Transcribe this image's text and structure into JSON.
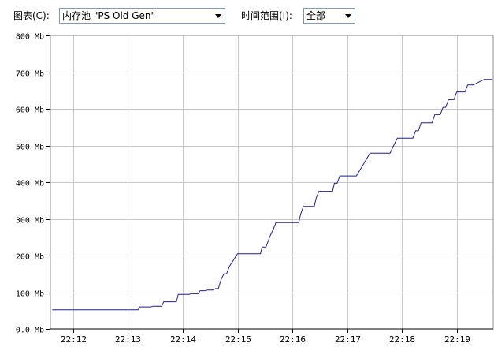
{
  "toolbar": {
    "chart_label": "图表(C):",
    "chart_value": "内存池 \"PS Old Gen\"",
    "range_label": "时间范围(I):",
    "range_value": "全部"
  },
  "colors": {
    "line": "#1f1f8f",
    "grid": "#c8c8c8",
    "frame": "#8c8c8c",
    "combo_border": "#7f9db9"
  },
  "chart_data": {
    "type": "line",
    "title": "",
    "xlabel": "",
    "ylabel": "",
    "ylim": [
      0,
      800
    ],
    "xlim": [
      "22:11:35",
      "22:19:40"
    ],
    "grid": true,
    "legend": "none",
    "y_ticks": [
      {
        "value": 800,
        "label": "800 Mb"
      },
      {
        "value": 700,
        "label": "700 Mb"
      },
      {
        "value": 600,
        "label": "600 Mb"
      },
      {
        "value": 500,
        "label": "500 Mb"
      },
      {
        "value": 400,
        "label": "400 Mb"
      },
      {
        "value": 300,
        "label": "300 Mb"
      },
      {
        "value": 200,
        "label": "200 Mb"
      },
      {
        "value": 100,
        "label": "100 Mb"
      },
      {
        "value": 0,
        "label": "0.0 Mb"
      }
    ],
    "x_ticks": [
      {
        "value": "22:12:00",
        "label": "22:12"
      },
      {
        "value": "22:13:00",
        "label": "22:13"
      },
      {
        "value": "22:14:00",
        "label": "22:14"
      },
      {
        "value": "22:15:00",
        "label": "22:15"
      },
      {
        "value": "22:16:00",
        "label": "22:16"
      },
      {
        "value": "22:17:00",
        "label": "22:17"
      },
      {
        "value": "22:18:00",
        "label": "22:18"
      },
      {
        "value": "22:19:00",
        "label": "22:19"
      }
    ],
    "series": [
      {
        "x": [
          "22:11:37",
          "22:13:11",
          "22:13:13",
          "22:13:25",
          "22:13:27",
          "22:13:37",
          "22:13:39",
          "22:13:53",
          "22:13:55",
          "22:14:07",
          "22:14:09",
          "22:14:17",
          "22:14:19",
          "22:14:25",
          "22:14:27",
          "22:14:33",
          "22:14:36",
          "22:14:39",
          "22:14:42",
          "22:14:45",
          "22:14:48",
          "22:14:51",
          "22:15:00",
          "22:15:25",
          "22:15:27",
          "22:15:31",
          "22:15:33",
          "22:15:36",
          "22:15:39",
          "22:15:42",
          "22:15:45",
          "22:15:48",
          "22:16:07",
          "22:16:09",
          "22:16:12",
          "22:16:15",
          "22:16:24",
          "22:16:26",
          "22:16:29",
          "22:16:32",
          "22:16:44",
          "22:16:46",
          "22:16:49",
          "22:16:52",
          "22:16:55",
          "22:17:10",
          "22:17:15",
          "22:17:20",
          "22:17:25",
          "22:17:47",
          "22:17:51",
          "22:17:55",
          "22:18:00",
          "22:18:12",
          "22:18:15",
          "22:18:18",
          "22:18:21",
          "22:18:30",
          "22:18:33",
          "22:18:36",
          "22:18:39",
          "22:18:42",
          "22:18:45",
          "22:18:48",
          "22:18:51",
          "22:18:54",
          "22:18:57",
          "22:19:00",
          "22:19:03",
          "22:19:06",
          "22:19:09",
          "22:19:12",
          "22:19:15",
          "22:19:18",
          "22:19:30",
          "22:19:33",
          "22:19:36",
          "22:19:39"
        ],
        "values": [
          52,
          52,
          60,
          60,
          62,
          62,
          74,
          74,
          94,
          94,
          96,
          96,
          104,
          104,
          106,
          106,
          110,
          110,
          135,
          150,
          150,
          170,
          205,
          205,
          223,
          223,
          236,
          256,
          270,
          290,
          290,
          290,
          290,
          312,
          334,
          334,
          334,
          356,
          375,
          375,
          375,
          397,
          397,
          417,
          417,
          417,
          437,
          458,
          479,
          479,
          500,
          520,
          520,
          520,
          540,
          540,
          562,
          562,
          562,
          584,
          584,
          584,
          604,
          604,
          625,
          625,
          625,
          646,
          646,
          646,
          646,
          665,
          665,
          665,
          680,
          680,
          680,
          680
        ]
      }
    ]
  }
}
